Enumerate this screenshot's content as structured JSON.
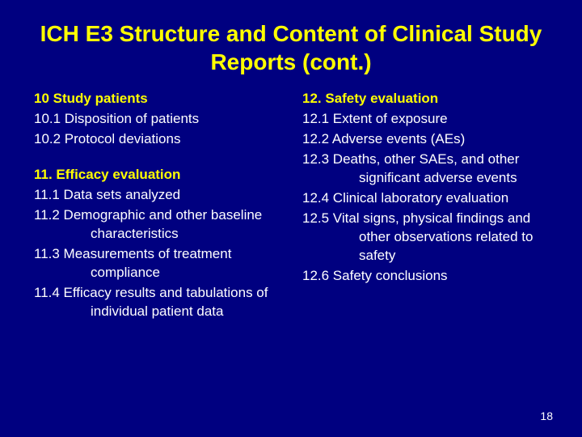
{
  "colors": {
    "background": "#000080",
    "title": "#ffff00",
    "section_header": "#ffff00",
    "body_text": "#ffffff"
  },
  "typography": {
    "title_fontsize": 28,
    "header_fontsize": 17,
    "body_fontsize": 17,
    "font_family": "Arial"
  },
  "title": "ICH E3 Structure and Content of Clinical Study Reports (cont.)",
  "left_column": {
    "section_10": {
      "header": "10 Study patients",
      "items": [
        "10.1  Disposition of patients",
        "10.2  Protocol deviations"
      ]
    },
    "section_11": {
      "header": "11. Efficacy evaluation",
      "items": [
        "11.1 Data sets analyzed",
        "11.2 Demographic and other baseline characteristics",
        "11.3 Measurements of treatment compliance",
        "11.4 Efficacy results and tabulations of individual patient data"
      ]
    }
  },
  "right_column": {
    "section_12": {
      "header": "12. Safety evaluation",
      "items": [
        "12.1 Extent of exposure",
        "12.2 Adverse events (AEs)",
        "12.3 Deaths, other SAEs, and other significant adverse events",
        "12.4 Clinical laboratory evaluation",
        "12.5 Vital signs, physical findings and other observations related to safety",
        "12.6 Safety conclusions"
      ]
    }
  },
  "page_number": "18"
}
